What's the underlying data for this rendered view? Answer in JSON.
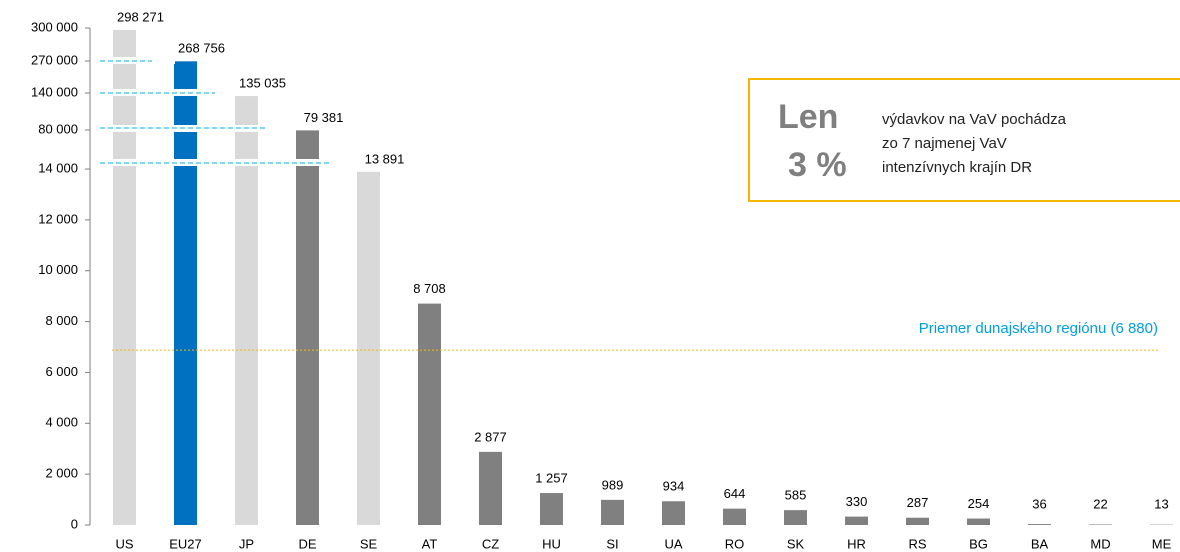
{
  "chart_data": {
    "type": "bar",
    "categories": [
      "US",
      "EU27",
      "JP",
      "DE",
      "SE",
      "AT",
      "CZ",
      "HU",
      "SI",
      "UA",
      "RO",
      "SK",
      "HR",
      "RS",
      "BG",
      "BA",
      "MD",
      "ME"
    ],
    "values": [
      298271,
      268756,
      135035,
      79381,
      13891,
      8708,
      2877,
      1257,
      989,
      934,
      644,
      585,
      330,
      287,
      254,
      36,
      22,
      13
    ],
    "value_labels": [
      "298 271",
      "268 756",
      "135 035",
      "79 381",
      "13 891",
      "8 708",
      "2 877",
      "1 257",
      "989",
      "934",
      "644",
      "585",
      "330",
      "287",
      "254",
      "36",
      "22",
      "13"
    ],
    "colors": [
      "#d9d9d9",
      "#0070c0",
      "#d9d9d9",
      "#808080",
      "#d9d9d9",
      "#808080",
      "#808080",
      "#808080",
      "#808080",
      "#808080",
      "#808080",
      "#808080",
      "#808080",
      "#808080",
      "#808080",
      "#808080",
      "#808080",
      "#808080"
    ],
    "ylim": [
      0,
      300000
    ],
    "yticks": [
      0,
      {
        "value": 2000,
        "label": "2 000"
      },
      {
        "value": 4000,
        "label": "4 000"
      },
      {
        "value": 6000,
        "label": "6 000"
      },
      {
        "value": 8000,
        "label": "8 000"
      },
      {
        "value": 10000,
        "label": "10 000"
      },
      {
        "value": 12000,
        "label": "12 000"
      },
      {
        "value": 14000,
        "label": "14 000"
      },
      {
        "value": 80000,
        "label": "80 000"
      },
      {
        "value": 140000,
        "label": "140 000"
      },
      {
        "value": 270000,
        "label": "270 000"
      },
      {
        "value": 300000,
        "label": "300 000"
      }
    ],
    "average": {
      "value": 6880,
      "label": "Priemer dunajského regiónu (6 880)",
      "color": "#f5b800"
    },
    "callout": {
      "big1": "Len",
      "big2": "3 %",
      "lines": [
        "výdavkov na VaV pochádza",
        "zo 7 najmenej VaV",
        "intenzívnych krajín DR"
      ]
    }
  }
}
